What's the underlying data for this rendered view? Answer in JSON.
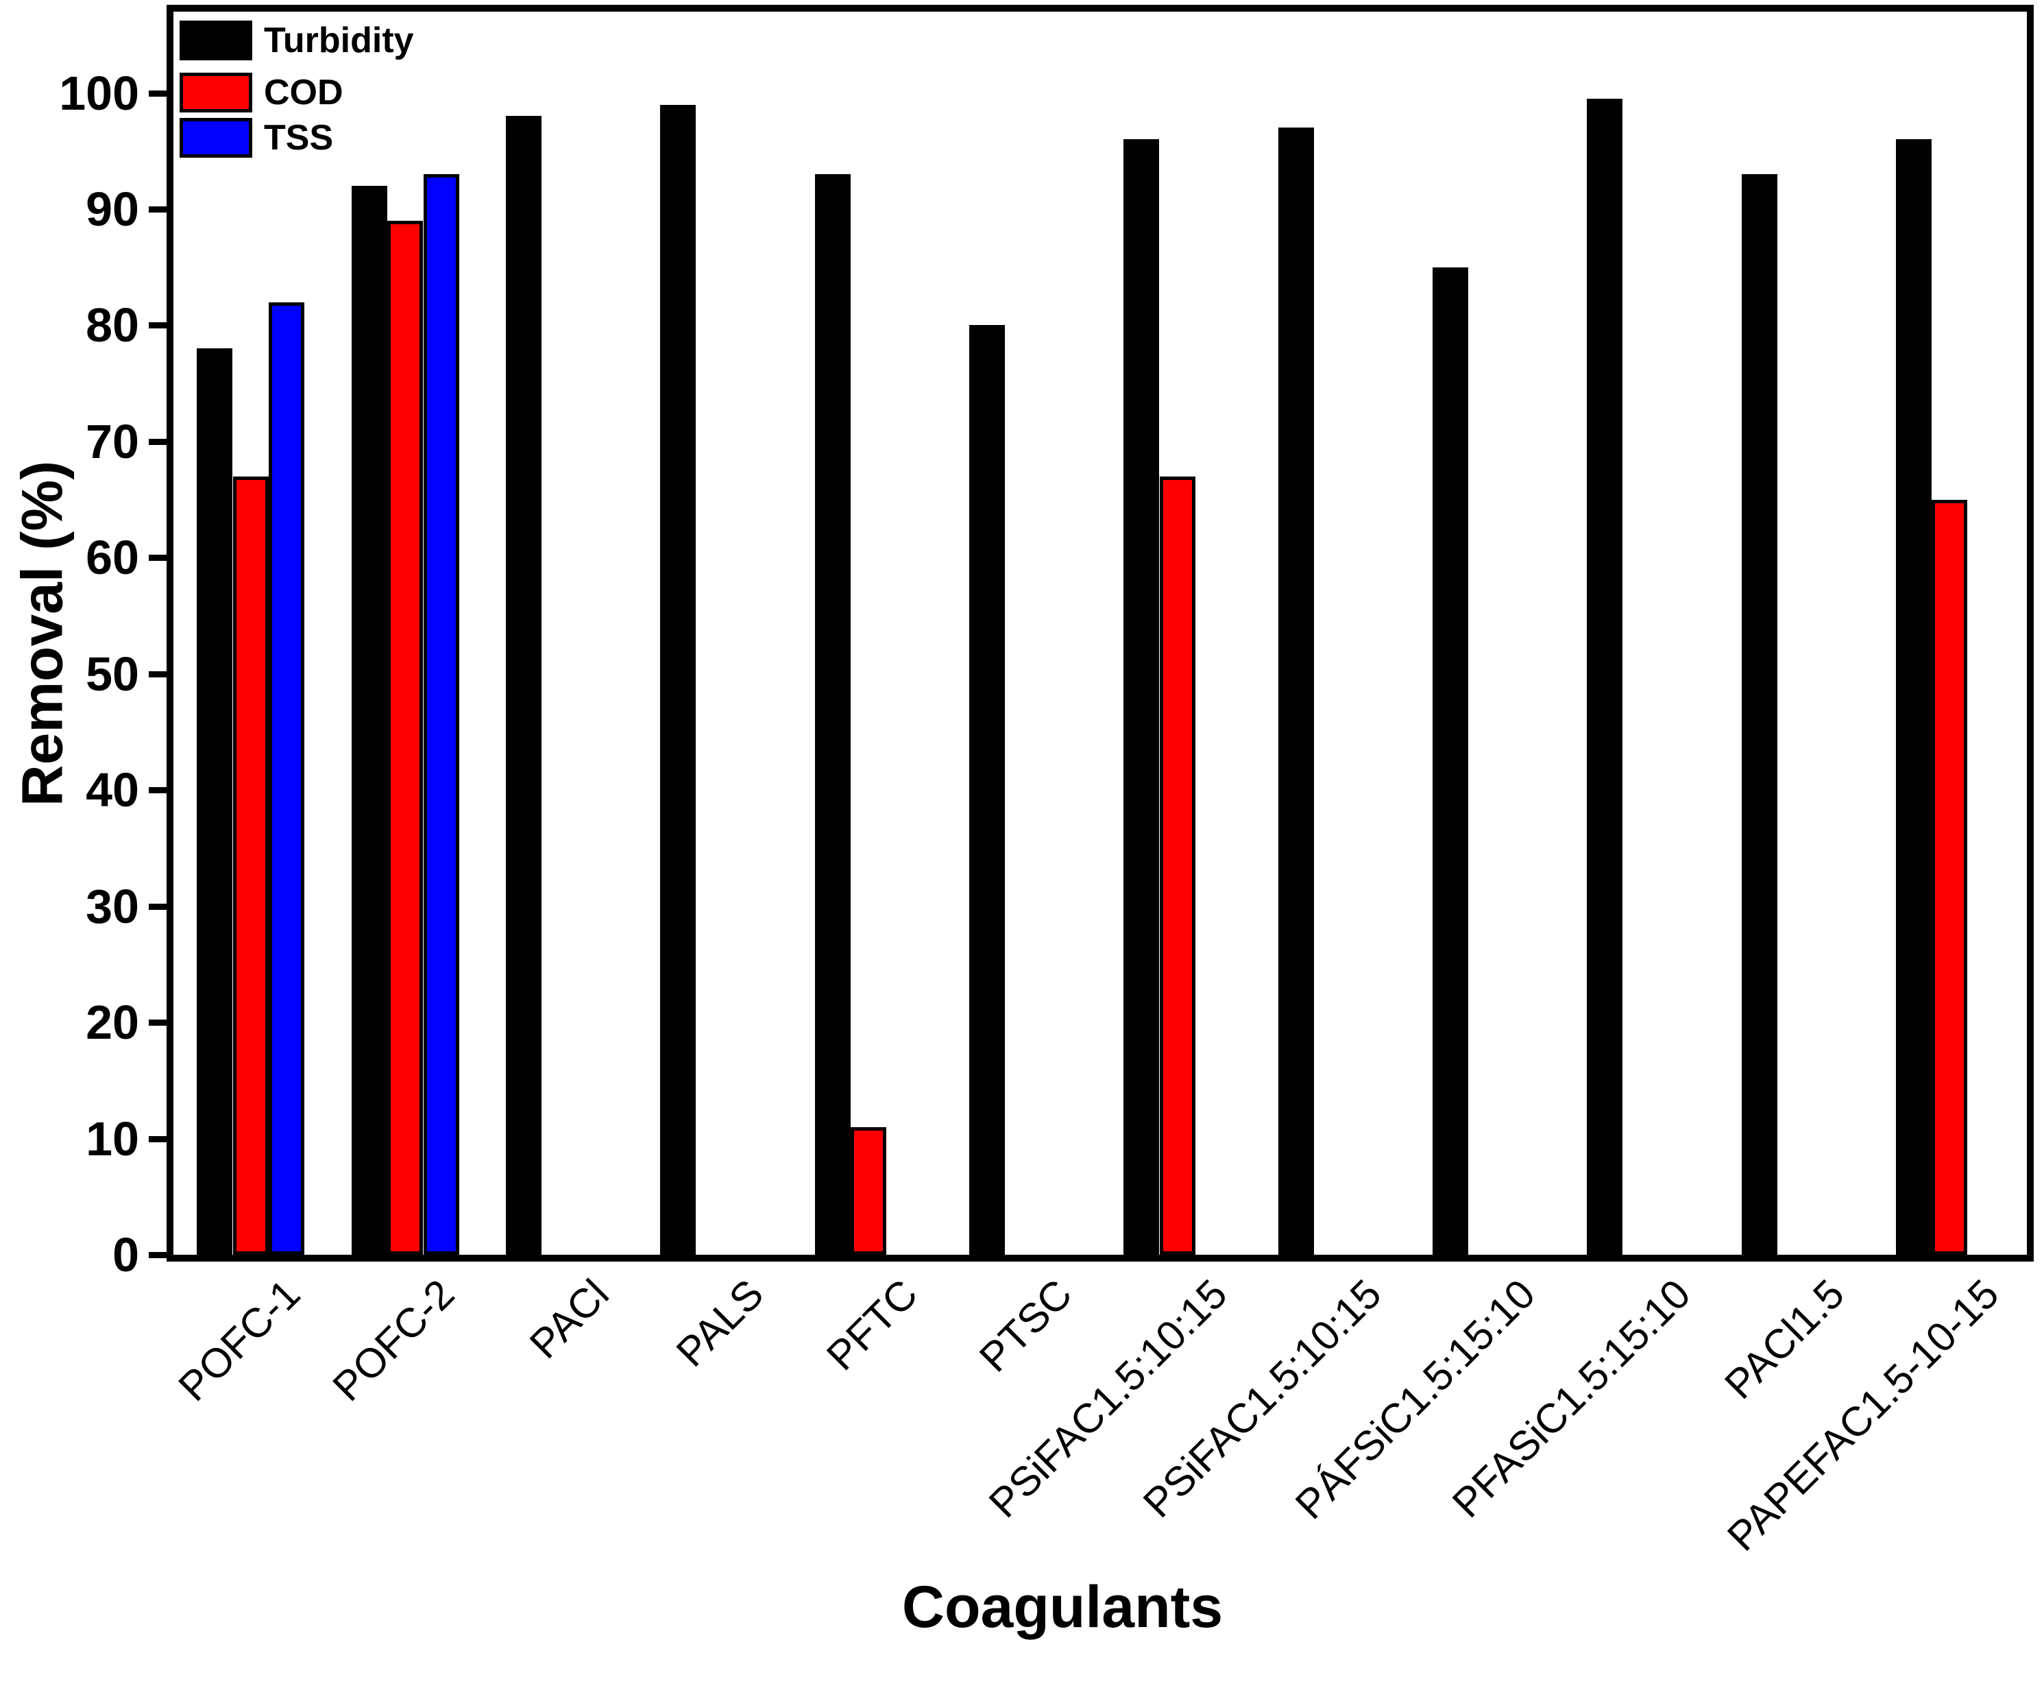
{
  "figure": {
    "background": "#FFFFFF",
    "frame_color": "#000000"
  },
  "chart_data": {
    "type": "bar",
    "title": "",
    "xlabel": "Coagulants",
    "ylabel": "Removal (%)",
    "ylim": [
      0,
      107
    ],
    "yticks": [
      0,
      10,
      20,
      30,
      40,
      50,
      60,
      70,
      80,
      90,
      100
    ],
    "grid": false,
    "legend_position": "top-left",
    "bar_outline_color": "#000000",
    "categories": [
      "POFC-1",
      "POFC-2",
      "PACl",
      "PALS",
      "PFTC",
      "PTSC",
      "PSiFAC1.5:10:15",
      "PSiFAC1.5:10:15",
      "PÁFSiC1.5:15:10",
      "PFASiC1.5:15:10",
      "PACl1.5",
      "PAPEFAC1.5-10-15"
    ],
    "series": [
      {
        "name": "Turbidity",
        "color": "#000000",
        "values": [
          78,
          92,
          98,
          99,
          93,
          80,
          96,
          97,
          85,
          99.5,
          93,
          96
        ]
      },
      {
        "name": "COD",
        "color": "#FF0000",
        "values": [
          67,
          89,
          null,
          null,
          11,
          null,
          67,
          null,
          null,
          null,
          null,
          65
        ]
      },
      {
        "name": "TSS",
        "color": "#0000FF",
        "values": [
          82,
          93,
          null,
          null,
          null,
          null,
          null,
          null,
          null,
          null,
          null,
          null
        ]
      }
    ]
  }
}
